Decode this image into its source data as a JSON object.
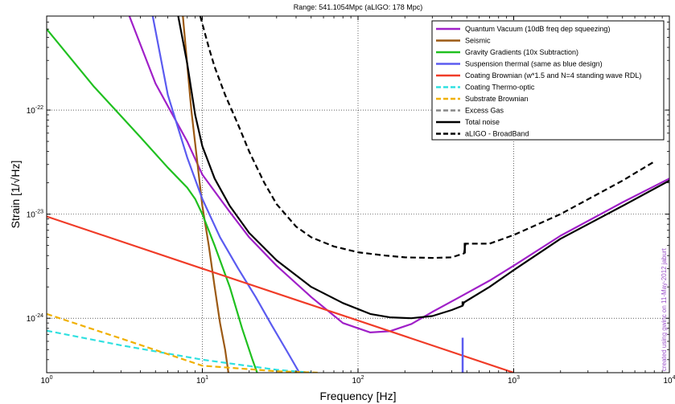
{
  "chart_data": {
    "type": "line",
    "title": "Range: 541.1054Mpc (aLIGO: 178 Mpc)",
    "xlabel": "Frequency [Hz]",
    "ylabel": "Strain [1/√Hz]",
    "xscale": "log",
    "yscale": "log",
    "xlim": [
      1,
      10000
    ],
    "ylim": [
      3e-25,
      8e-22
    ],
    "grid": true,
    "legend_position": "top-right",
    "x_ticks": [
      {
        "value": 1,
        "base": "10",
        "exp": "0"
      },
      {
        "value": 10,
        "base": "10",
        "exp": "1"
      },
      {
        "value": 100,
        "base": "10",
        "exp": "2"
      },
      {
        "value": 1000,
        "base": "10",
        "exp": "3"
      },
      {
        "value": 10000,
        "base": "10",
        "exp": "4"
      }
    ],
    "y_ticks": [
      {
        "value": 1e-24,
        "base": "10",
        "exp": "-24"
      },
      {
        "value": 1e-23,
        "base": "10",
        "exp": "-23"
      },
      {
        "value": 1e-22,
        "base": "10",
        "exp": "-22"
      }
    ],
    "series": [
      {
        "name": "Quantum Vacuum (10dB freq dep squeezing)",
        "color": "#a020c8",
        "dash": "solid",
        "x": [
          3.4,
          5,
          8,
          10,
          15,
          20,
          30,
          50,
          80,
          120,
          160,
          220,
          300,
          450,
          700,
          1000,
          2000,
          5000,
          10000
        ],
        "y": [
          8e-22,
          1.8e-22,
          5e-23,
          2.4e-23,
          1.05e-23,
          6e-24,
          3.2e-24,
          1.6e-24,
          9e-25,
          7.3e-25,
          7.5e-25,
          8.8e-25,
          1.15e-24,
          1.6e-24,
          2.3e-24,
          3.2e-24,
          6.2e-24,
          1.3e-23,
          2.2e-23
        ]
      },
      {
        "name": "Seismic",
        "color": "#9c5a14",
        "dash": "solid",
        "x": [
          7.5,
          8.5,
          10,
          11,
          12,
          13,
          14,
          14.7
        ],
        "y": [
          8e-22,
          1e-22,
          1.2e-23,
          5e-24,
          2e-24,
          9e-25,
          5e-25,
          3e-25
        ]
      },
      {
        "name": "Gravity Gradients (10x Subtraction)",
        "color": "#20c020",
        "dash": "solid",
        "x": [
          1,
          2,
          4,
          6,
          8,
          9,
          10,
          12,
          15,
          18,
          21,
          22.5
        ],
        "y": [
          6e-22,
          1.7e-22,
          5.5e-23,
          2.8e-23,
          1.8e-23,
          1.4e-23,
          1e-23,
          5e-24,
          2e-24,
          8e-25,
          4e-25,
          3e-25
        ]
      },
      {
        "name": "Suspension thermal (same as blue design)",
        "color": "#5b5bf0",
        "dash": "solid",
        "x": [
          4.8,
          6,
          8,
          10,
          13,
          17,
          22,
          28,
          35,
          42
        ],
        "y": [
          8e-22,
          1.4e-22,
          3.5e-23,
          1.4e-23,
          6e-24,
          3e-24,
          1.6e-24,
          8.5e-25,
          4.8e-25,
          3e-25
        ]
      },
      {
        "name": "Coating Brownian (w*1.5 and N=4 standing wave RDL)",
        "color": "#f03c28",
        "dash": "solid",
        "x": [
          1,
          10,
          100,
          1000
        ],
        "y": [
          9.5e-24,
          3e-24,
          9.5e-25,
          3e-25
        ]
      },
      {
        "name": "Coating Thermo-optic",
        "color": "#30e0e0",
        "dash": "dashed",
        "x": [
          1,
          3,
          10,
          30,
          50
        ],
        "y": [
          7.6e-25,
          5.5e-25,
          4e-25,
          3.2e-25,
          3e-25
        ]
      },
      {
        "name": "Substrate Brownian",
        "color": "#f0b000",
        "dash": "dashed",
        "x": [
          1,
          3,
          10,
          30,
          55
        ],
        "y": [
          1.1e-24,
          6.4e-25,
          3.5e-25,
          3.1e-25,
          3e-25
        ]
      },
      {
        "name": "Excess Gas",
        "color": "#888888",
        "dash": "dashed",
        "x": [],
        "y": []
      },
      {
        "name": "Total noise",
        "color": "#000000",
        "dash": "solid",
        "x": [
          7,
          8,
          9,
          10,
          12,
          15,
          20,
          30,
          50,
          80,
          120,
          160,
          220,
          300,
          400,
          470,
          480,
          700,
          1000,
          2000,
          5000,
          10000
        ],
        "y": [
          8e-22,
          2.8e-22,
          9e-23,
          4.5e-23,
          2.2e-23,
          1.2e-23,
          6.6e-24,
          3.6e-24,
          2e-24,
          1.4e-24,
          1.1e-24,
          1.02e-24,
          1e-24,
          1.05e-24,
          1.2e-24,
          1.32e-24,
          1.42e-24,
          2e-24,
          2.9e-24,
          5.8e-24,
          1.2e-23,
          2.1e-23
        ]
      },
      {
        "name": "aLIGO - BroadBand",
        "color": "#000000",
        "dash": "dashed",
        "x": [
          9.7,
          11,
          12,
          14,
          17,
          20,
          25,
          30,
          40,
          50,
          70,
          100,
          150,
          200,
          300,
          400,
          480,
          490,
          700,
          1000,
          2000,
          5000,
          8000
        ],
        "y": [
          8e-22,
          4e-22,
          2.6e-22,
          1.4e-22,
          7.2e-23,
          4e-23,
          2e-23,
          1.25e-23,
          7.6e-24,
          6e-24,
          4.9e-24,
          4.3e-24,
          4e-24,
          3.85e-24,
          3.8e-24,
          3.85e-24,
          4.2e-24,
          5.2e-24,
          5.2e-24,
          6.3e-24,
          1e-23,
          2.1e-23,
          3.2e-23
        ]
      }
    ],
    "spikes": [
      {
        "color": "#5b5bf0",
        "x": 470,
        "y": [
          3e-25,
          6.5e-25
        ]
      },
      {
        "color": "#000000",
        "x": 470,
        "y": [
          1.32e-24,
          1.45e-24
        ]
      },
      {
        "color": "#000000",
        "x": 485,
        "y": [
          4.2e-24,
          5.3e-24
        ]
      }
    ]
  },
  "side_text": "created using gwinc on 11-May-2012 jaburt"
}
